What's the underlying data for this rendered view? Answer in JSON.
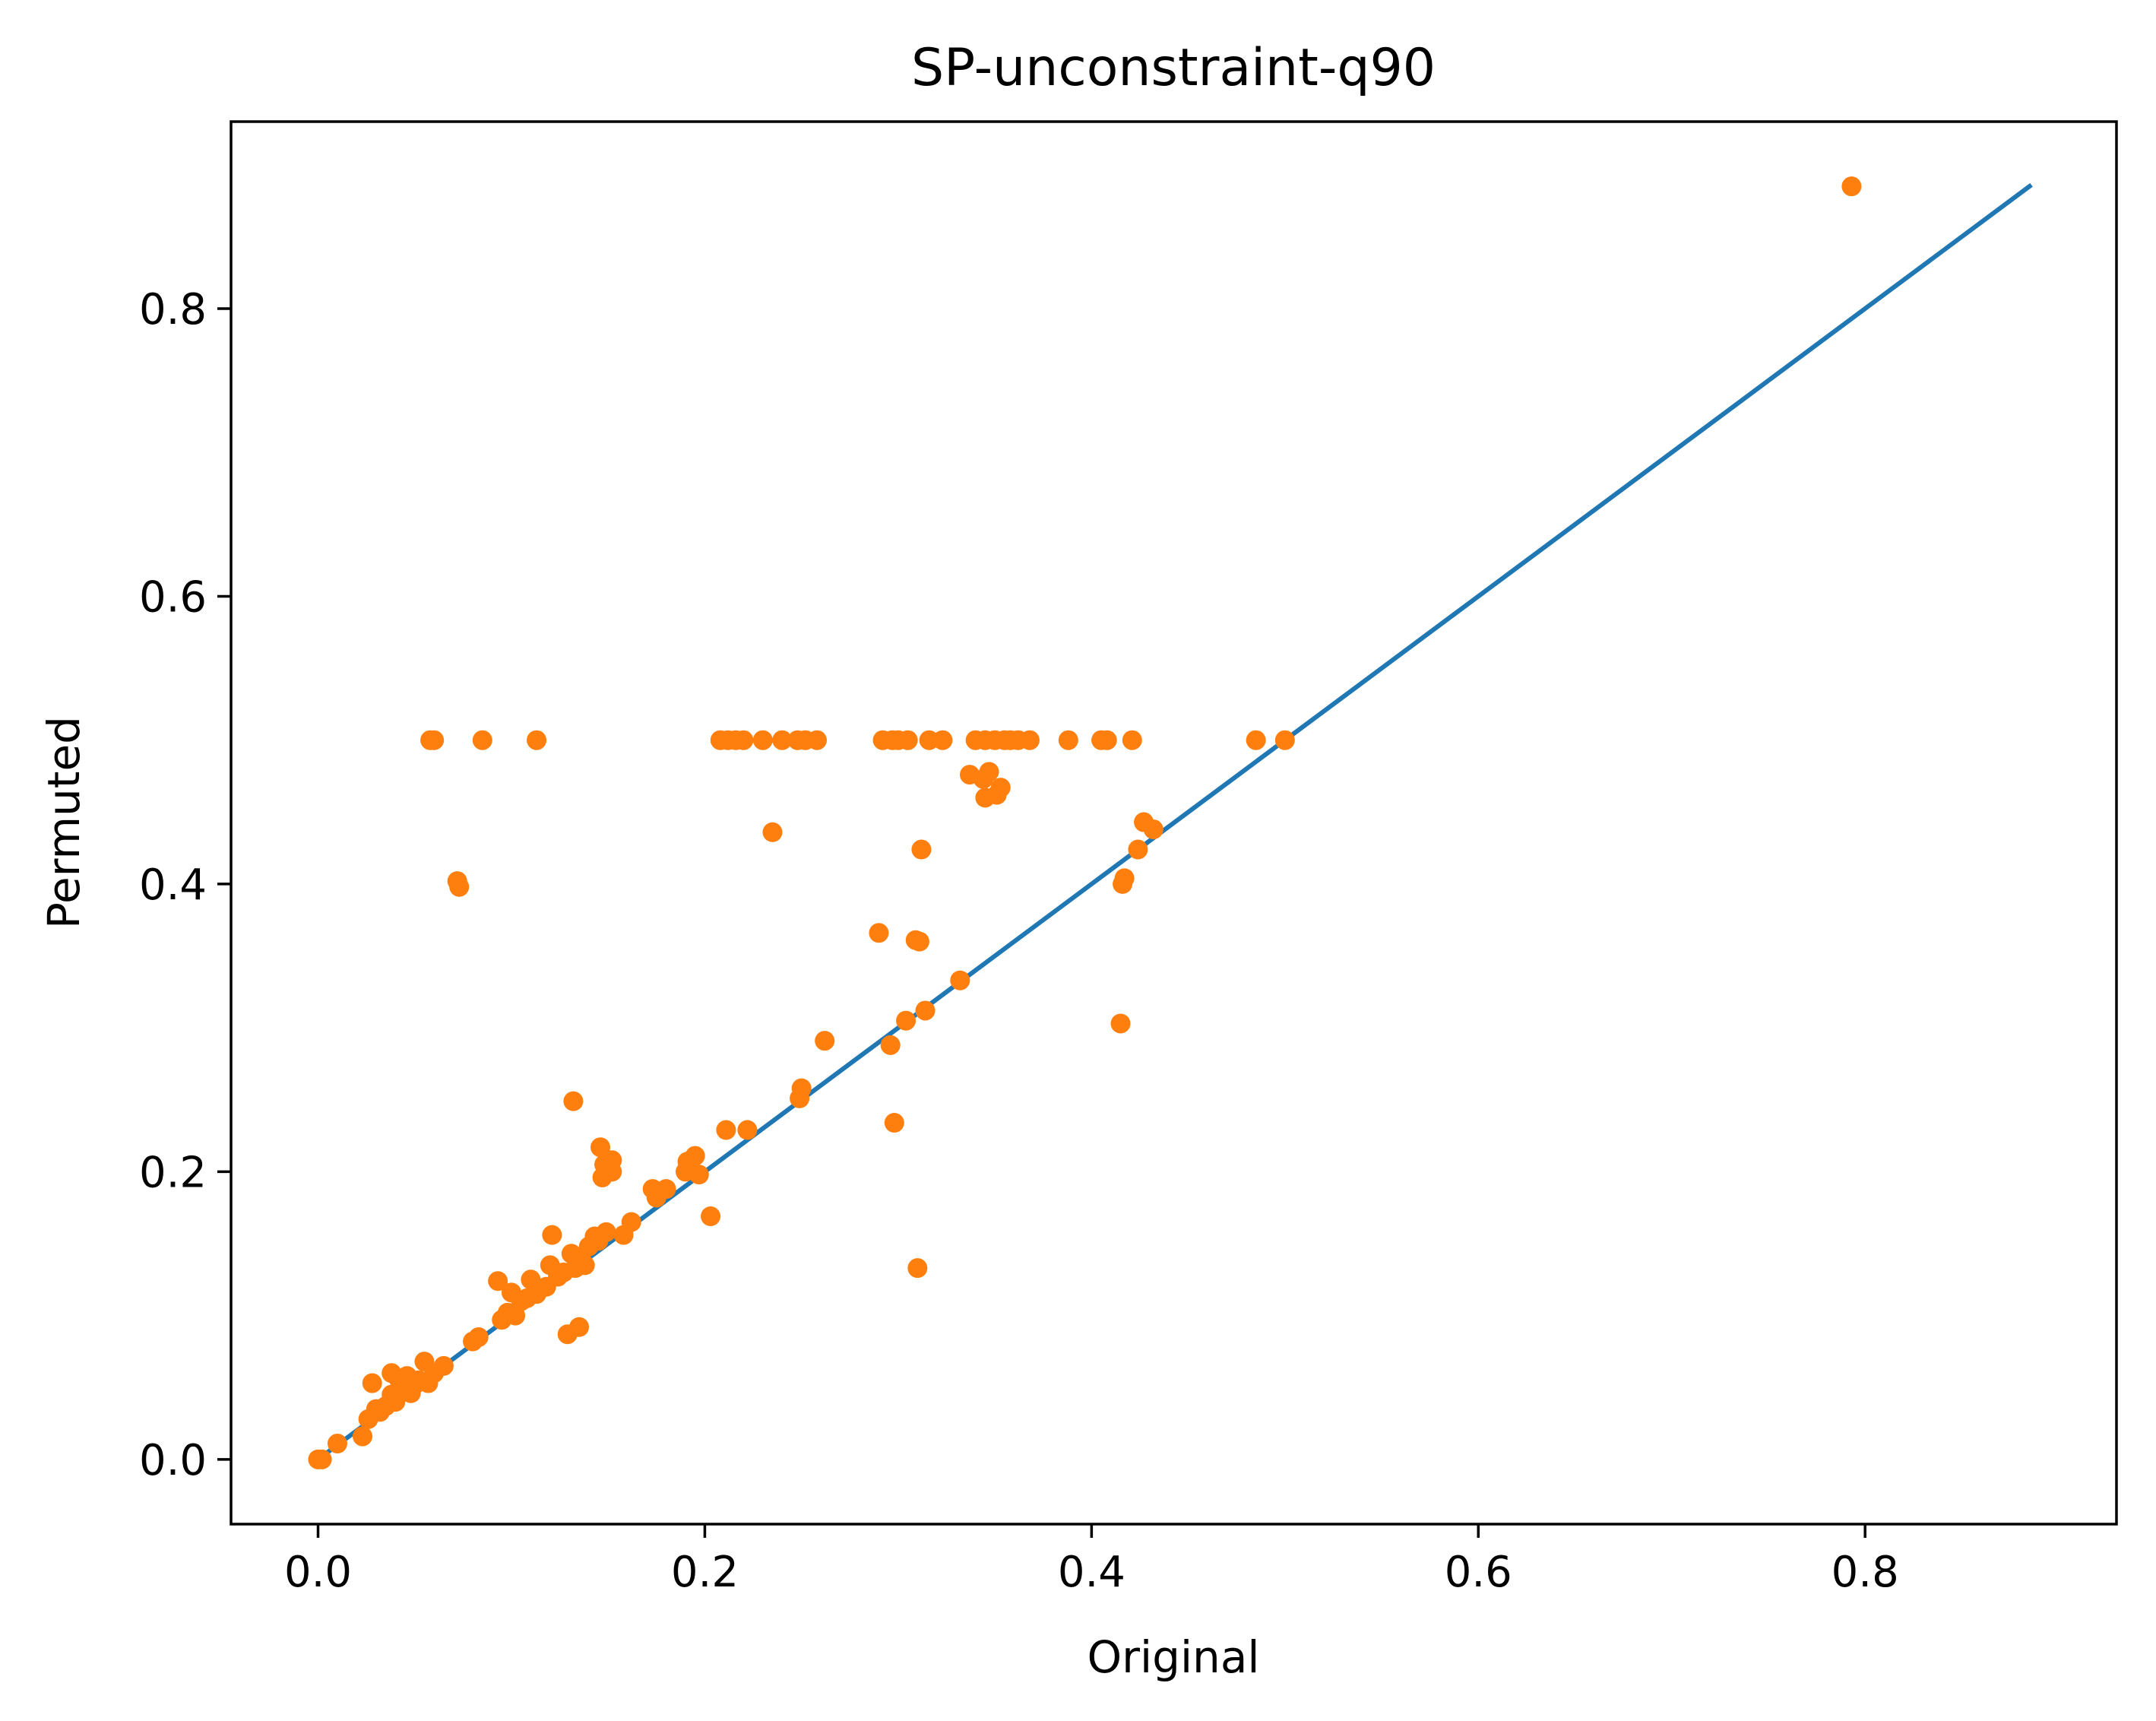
{
  "chart_data": {
    "type": "scatter",
    "title": "SP-unconstraint-q90",
    "xlabel": "Original",
    "ylabel": "Permuted",
    "xlim": [
      -0.045,
      0.93
    ],
    "ylim": [
      -0.045,
      0.93
    ],
    "xticks": [
      0.0,
      0.2,
      0.4,
      0.6,
      0.8
    ],
    "yticks": [
      0.0,
      0.2,
      0.4,
      0.6,
      0.8
    ],
    "xtick_labels": [
      "0.0",
      "0.2",
      "0.4",
      "0.6",
      "0.8"
    ],
    "ytick_labels": [
      "0.0",
      "0.2",
      "0.4",
      "0.6",
      "0.8"
    ],
    "grid": false,
    "legend": "none",
    "series": [
      {
        "type": "line",
        "color": "#1f77b4",
        "x": [
          0.0,
          0.886
        ],
        "y": [
          0.0,
          0.886
        ]
      },
      {
        "type": "scatter",
        "color": "#ff7f0e",
        "points": [
          [
            0.0,
            0.0
          ],
          [
            0.002,
            0.0
          ],
          [
            0.01,
            0.011
          ],
          [
            0.023,
            0.016
          ],
          [
            0.026,
            0.028
          ],
          [
            0.028,
            0.053
          ],
          [
            0.03,
            0.035
          ],
          [
            0.032,
            0.033
          ],
          [
            0.035,
            0.037
          ],
          [
            0.038,
            0.045
          ],
          [
            0.038,
            0.06
          ],
          [
            0.04,
            0.04
          ],
          [
            0.042,
            0.055
          ],
          [
            0.044,
            0.05
          ],
          [
            0.046,
            0.058
          ],
          [
            0.048,
            0.046
          ],
          [
            0.05,
            0.052
          ],
          [
            0.052,
            0.055
          ],
          [
            0.055,
            0.068
          ],
          [
            0.057,
            0.053
          ],
          [
            0.06,
            0.06
          ],
          [
            0.065,
            0.065
          ],
          [
            0.072,
            0.402
          ],
          [
            0.073,
            0.398
          ],
          [
            0.08,
            0.082
          ],
          [
            0.083,
            0.085
          ],
          [
            0.093,
            0.124
          ],
          [
            0.095,
            0.097
          ],
          [
            0.098,
            0.102
          ],
          [
            0.1,
            0.116
          ],
          [
            0.102,
            0.1
          ],
          [
            0.105,
            0.11
          ],
          [
            0.108,
            0.112
          ],
          [
            0.11,
            0.125
          ],
          [
            0.113,
            0.115
          ],
          [
            0.118,
            0.12
          ],
          [
            0.12,
            0.135
          ],
          [
            0.121,
            0.156
          ],
          [
            0.124,
            0.127
          ],
          [
            0.127,
            0.13
          ],
          [
            0.129,
            0.087
          ],
          [
            0.131,
            0.143
          ],
          [
            0.132,
            0.249
          ],
          [
            0.133,
            0.133
          ],
          [
            0.135,
            0.092
          ],
          [
            0.136,
            0.14
          ],
          [
            0.138,
            0.135
          ],
          [
            0.14,
            0.148
          ],
          [
            0.143,
            0.155
          ],
          [
            0.145,
            0.152
          ],
          [
            0.146,
            0.217
          ],
          [
            0.147,
            0.196
          ],
          [
            0.148,
            0.205
          ],
          [
            0.149,
            0.158
          ],
          [
            0.152,
            0.208
          ],
          [
            0.152,
            0.2
          ],
          [
            0.158,
            0.156
          ],
          [
            0.162,
            0.165
          ],
          [
            0.173,
            0.188
          ],
          [
            0.175,
            0.182
          ],
          [
            0.18,
            0.188
          ],
          [
            0.19,
            0.2
          ],
          [
            0.191,
            0.207
          ],
          [
            0.195,
            0.211
          ],
          [
            0.197,
            0.198
          ],
          [
            0.203,
            0.169
          ],
          [
            0.211,
            0.229
          ],
          [
            0.222,
            0.229
          ],
          [
            0.235,
            0.436
          ],
          [
            0.249,
            0.251
          ],
          [
            0.25,
            0.258
          ],
          [
            0.262,
            0.291
          ],
          [
            0.29,
            0.366
          ],
          [
            0.296,
            0.288
          ],
          [
            0.298,
            0.234
          ],
          [
            0.304,
            0.305
          ],
          [
            0.309,
            0.361
          ],
          [
            0.31,
            0.133
          ],
          [
            0.311,
            0.36
          ],
          [
            0.312,
            0.424
          ],
          [
            0.314,
            0.312
          ],
          [
            0.332,
            0.333
          ],
          [
            0.337,
            0.476
          ],
          [
            0.344,
            0.473
          ],
          [
            0.345,
            0.46
          ],
          [
            0.347,
            0.478
          ],
          [
            0.351,
            0.462
          ],
          [
            0.353,
            0.467
          ],
          [
            0.415,
            0.303
          ],
          [
            0.416,
            0.4
          ],
          [
            0.417,
            0.404
          ],
          [
            0.424,
            0.424
          ],
          [
            0.427,
            0.443
          ],
          [
            0.432,
            0.438
          ],
          [
            0.058,
            0.5
          ],
          [
            0.06,
            0.5
          ],
          [
            0.085,
            0.5
          ],
          [
            0.113,
            0.5
          ],
          [
            0.208,
            0.5
          ],
          [
            0.212,
            0.5
          ],
          [
            0.216,
            0.5
          ],
          [
            0.22,
            0.5
          ],
          [
            0.23,
            0.5
          ],
          [
            0.24,
            0.5
          ],
          [
            0.248,
            0.5
          ],
          [
            0.252,
            0.5
          ],
          [
            0.258,
            0.5
          ],
          [
            0.292,
            0.5
          ],
          [
            0.297,
            0.5
          ],
          [
            0.3,
            0.5
          ],
          [
            0.305,
            0.5
          ],
          [
            0.316,
            0.5
          ],
          [
            0.323,
            0.5
          ],
          [
            0.34,
            0.5
          ],
          [
            0.345,
            0.5
          ],
          [
            0.35,
            0.5
          ],
          [
            0.355,
            0.5
          ],
          [
            0.358,
            0.5
          ],
          [
            0.362,
            0.5
          ],
          [
            0.368,
            0.5
          ],
          [
            0.388,
            0.5
          ],
          [
            0.405,
            0.5
          ],
          [
            0.408,
            0.5
          ],
          [
            0.421,
            0.5
          ],
          [
            0.485,
            0.5
          ],
          [
            0.5,
            0.5
          ],
          [
            0.793,
            0.885
          ]
        ]
      }
    ]
  }
}
